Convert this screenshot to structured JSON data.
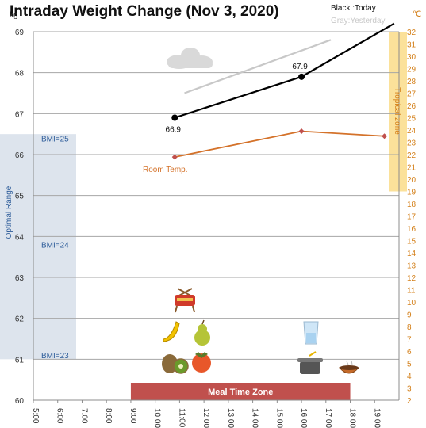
{
  "chart_data": {
    "type": "line",
    "title": "Intraday Weight Change (Nov 3, 2020)",
    "legend": {
      "today": "Black :Today",
      "yesterday": "Gray:Yesterday"
    },
    "y_left_unit": "kg",
    "y_right_unit": "℃",
    "x_ticks": [
      "5:00",
      "6:00",
      "7:00",
      "8:00",
      "9:00",
      "10:00",
      "11:00",
      "12:00",
      "13:00",
      "14:00",
      "15:00",
      "16:00",
      "17:00",
      "18:00",
      "19:00"
    ],
    "xlim": [
      5,
      20
    ],
    "ylim": [
      60,
      69
    ],
    "y_ticks": [
      60,
      61,
      62,
      63,
      64,
      65,
      66,
      67,
      68,
      69
    ],
    "y2lim": [
      2,
      32
    ],
    "y2_ticks": [
      2,
      3,
      4,
      5,
      6,
      7,
      8,
      9,
      10,
      11,
      12,
      13,
      14,
      15,
      16,
      17,
      18,
      19,
      20,
      21,
      22,
      23,
      24,
      25,
      26,
      27,
      28,
      29,
      30,
      31,
      32
    ],
    "series": [
      {
        "name": "Today",
        "color": "#000000",
        "axis": "left",
        "x": [
          10.8,
          16.0,
          19.8
        ],
        "y": [
          66.9,
          67.9,
          69.2
        ],
        "labels": [
          {
            "x": 10.8,
            "text": "66.9"
          },
          {
            "x": 16.0,
            "text": "67.9"
          }
        ]
      },
      {
        "name": "Yesterday",
        "color": "#c8c8c8",
        "axis": "left",
        "x": [
          11.2,
          17.2
        ],
        "y": [
          67.5,
          68.8
        ]
      },
      {
        "name": "Room Temp.",
        "color": "#d4722a",
        "axis": "right",
        "x": [
          10.8,
          16.0,
          19.4
        ],
        "y": [
          21.8,
          23.9,
          23.5
        ]
      }
    ],
    "annotations": {
      "room_temp_label": "Room Temp.",
      "optimal_range_label": "Optimal Range",
      "optimal_range": [
        61,
        66.5
      ],
      "bmi_labels": [
        {
          "text": "BMI=25",
          "y": 66.4
        },
        {
          "text": "BMI=24",
          "y": 63.8
        },
        {
          "text": "BMI=23",
          "y": 61.1
        }
      ],
      "tropical_zone_label": "Tropical zone",
      "tropical_zone": [
        19,
        32
      ],
      "meal_zone_label": "Meal Time Zone",
      "meal_zone": [
        9.0,
        18.0
      ]
    },
    "icons": [
      "cloud-icon",
      "fondue-pot-icon",
      "banana-icon",
      "pear-icon",
      "kiwi-icon",
      "persimmon-icon",
      "water-glass-icon",
      "cooking-pot-icon",
      "soup-bowl-icon"
    ],
    "colors": {
      "grid": "#a6a6a6",
      "optimal": "#dde4ed",
      "optimal_text": "#2e5d9a",
      "tropical": "#fbe19a",
      "tropical_text": "#d4801a",
      "meal": "#c0504d",
      "right_axis": "#d4801a"
    }
  }
}
